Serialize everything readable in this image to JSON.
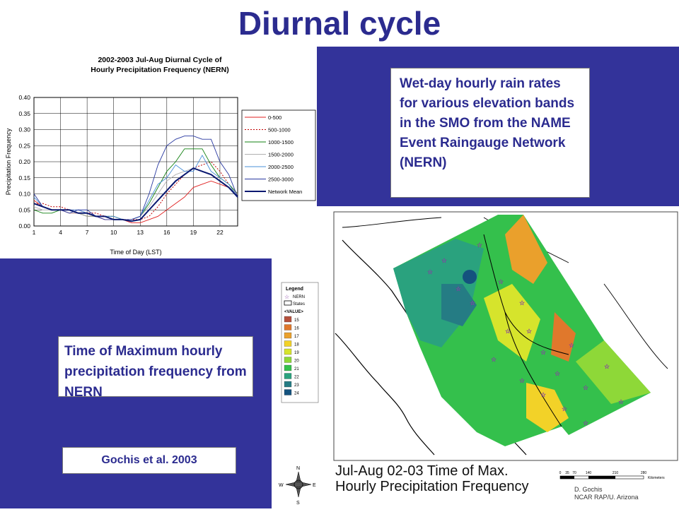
{
  "slide": {
    "title": "Diurnal cycle",
    "description": "Wet-day hourly rain rates for various elevation bands in the SMO from the NAME Event Raingauge Network (NERN)",
    "map_description": "Time of Maximum hourly precipitation frequency from NERN",
    "citation": "Gochis et al. 2003"
  },
  "chart_data": {
    "type": "line",
    "title": "2002-2003 Jul-Aug Diurnal Cycle of Hourly Precipitation Frequency (NERN)",
    "title_lines": [
      "2002-2003 Jul-Aug Diurnal Cycle of",
      "Hourly Precipitation Frequency (NERN)"
    ],
    "xlabel": "Time of Day (LST)",
    "ylabel": "Precipitation Frequency",
    "xlim": [
      1,
      24
    ],
    "ylim": [
      0,
      0.4
    ],
    "xticks": [
      1,
      4,
      7,
      10,
      13,
      16,
      19,
      22
    ],
    "yticks": [
      "0.00",
      "0.05",
      "0.10",
      "0.15",
      "0.20",
      "0.25",
      "0.30",
      "0.35",
      "0.40"
    ],
    "grid": true,
    "legend_position": "right",
    "x": [
      1,
      2,
      3,
      4,
      5,
      6,
      7,
      8,
      9,
      10,
      11,
      12,
      13,
      14,
      15,
      16,
      17,
      18,
      19,
      20,
      21,
      22,
      23,
      24
    ],
    "series": [
      {
        "name": "0-500",
        "color": "#e02020",
        "dash": "",
        "width": 0.9,
        "values": [
          0.08,
          0.06,
          0.05,
          0.05,
          0.04,
          0.04,
          0.03,
          0.03,
          0.02,
          0.02,
          0.02,
          0.01,
          0.01,
          0.02,
          0.03,
          0.05,
          0.07,
          0.09,
          0.12,
          0.13,
          0.14,
          0.13,
          0.12,
          0.1
        ]
      },
      {
        "name": "500-1000",
        "color": "#c00000",
        "dash": "2,2",
        "width": 1,
        "values": [
          0.07,
          0.07,
          0.06,
          0.06,
          0.05,
          0.05,
          0.04,
          0.04,
          0.03,
          0.03,
          0.02,
          0.02,
          0.02,
          0.03,
          0.06,
          0.1,
          0.13,
          0.16,
          0.18,
          0.19,
          0.2,
          0.17,
          0.13,
          0.1
        ]
      },
      {
        "name": "1000-1500",
        "color": "#108010",
        "dash": "",
        "width": 0.9,
        "values": [
          0.05,
          0.04,
          0.04,
          0.05,
          0.05,
          0.04,
          0.03,
          0.03,
          0.03,
          0.03,
          0.02,
          0.02,
          0.03,
          0.07,
          0.12,
          0.17,
          0.2,
          0.24,
          0.24,
          0.24,
          0.19,
          0.15,
          0.13,
          0.1
        ]
      },
      {
        "name": "1500-2000",
        "color": "#b0b0b0",
        "dash": "",
        "width": 0.9,
        "values": [
          0.06,
          0.05,
          0.05,
          0.05,
          0.04,
          0.04,
          0.03,
          0.03,
          0.03,
          0.02,
          0.02,
          0.02,
          0.03,
          0.06,
          0.1,
          0.14,
          0.16,
          0.17,
          0.18,
          0.17,
          0.16,
          0.14,
          0.12,
          0.1
        ]
      },
      {
        "name": "2000-2500",
        "color": "#4a90d9",
        "dash": "",
        "width": 0.9,
        "values": [
          0.09,
          0.06,
          0.05,
          0.05,
          0.05,
          0.05,
          0.04,
          0.03,
          0.03,
          0.03,
          0.02,
          0.02,
          0.03,
          0.08,
          0.13,
          0.15,
          0.19,
          0.17,
          0.17,
          0.22,
          0.17,
          0.15,
          0.13,
          0.09
        ]
      },
      {
        "name": "2500-3000",
        "color": "#2838a0",
        "dash": "",
        "width": 0.9,
        "values": [
          0.1,
          0.06,
          0.05,
          0.05,
          0.04,
          0.05,
          0.05,
          0.03,
          0.02,
          0.02,
          0.02,
          0.02,
          0.03,
          0.1,
          0.19,
          0.25,
          0.27,
          0.28,
          0.28,
          0.27,
          0.27,
          0.2,
          0.16,
          0.09
        ]
      },
      {
        "name": "Network Mean",
        "color": "#0a1870",
        "dash": "",
        "width": 2,
        "values": [
          0.07,
          0.06,
          0.05,
          0.05,
          0.05,
          0.04,
          0.04,
          0.03,
          0.03,
          0.02,
          0.02,
          0.015,
          0.02,
          0.05,
          0.08,
          0.11,
          0.14,
          0.16,
          0.18,
          0.17,
          0.16,
          0.14,
          0.12,
          0.09
        ]
      }
    ]
  },
  "map": {
    "caption": "Jul-Aug 02-03 Time of Max.\nHourly Precipitation Frequency",
    "credit": "D. Gochis\nNCAR RAP/U. Arizona",
    "legend_title": "Legend",
    "legend_symbols": [
      "NERN",
      "States",
      "<VALUE>"
    ],
    "legend_values": [
      "15",
      "16",
      "17",
      "18",
      "19",
      "20",
      "21",
      "22",
      "23",
      "24"
    ],
    "legend_colors": [
      "#b5503c",
      "#e0782c",
      "#eaa02c",
      "#f2d228",
      "#d6e42c",
      "#8ed838",
      "#34c04c",
      "#2aa27e",
      "#257c84",
      "#14527e"
    ],
    "scale_ticks": [
      "0",
      "35",
      "70",
      "140",
      "210",
      "280"
    ],
    "scale_unit": "Kilometers",
    "compass": [
      "N",
      "S",
      "E",
      "W"
    ]
  }
}
